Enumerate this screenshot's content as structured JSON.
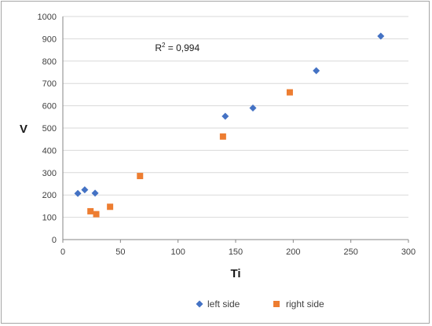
{
  "chart_data": {
    "type": "scatter",
    "xlabel": "Ti",
    "ylabel": "V",
    "xlim": [
      0,
      300
    ],
    "ylim": [
      0,
      1000
    ],
    "xticks": [
      0,
      50,
      100,
      150,
      200,
      250,
      300
    ],
    "yticks": [
      0,
      100,
      200,
      300,
      400,
      500,
      600,
      700,
      800,
      900,
      1000
    ],
    "grid": true,
    "legend_position": "bottom",
    "annotation": {
      "prefix": "R",
      "superscript": "2",
      "suffix": " = 0,994",
      "x": 80,
      "y": 845
    },
    "series": [
      {
        "name": "left side",
        "marker": "diamond",
        "color": "#4472c4",
        "x": [
          13,
          19,
          28,
          141,
          165,
          220,
          276
        ],
        "y": [
          207,
          223,
          208,
          553,
          590,
          757,
          912
        ]
      },
      {
        "name": "right side",
        "marker": "square",
        "color": "#ed7d31",
        "x": [
          24,
          29,
          41,
          67,
          139,
          197
        ],
        "y": [
          127,
          114,
          147,
          285,
          462,
          660
        ]
      }
    ]
  }
}
